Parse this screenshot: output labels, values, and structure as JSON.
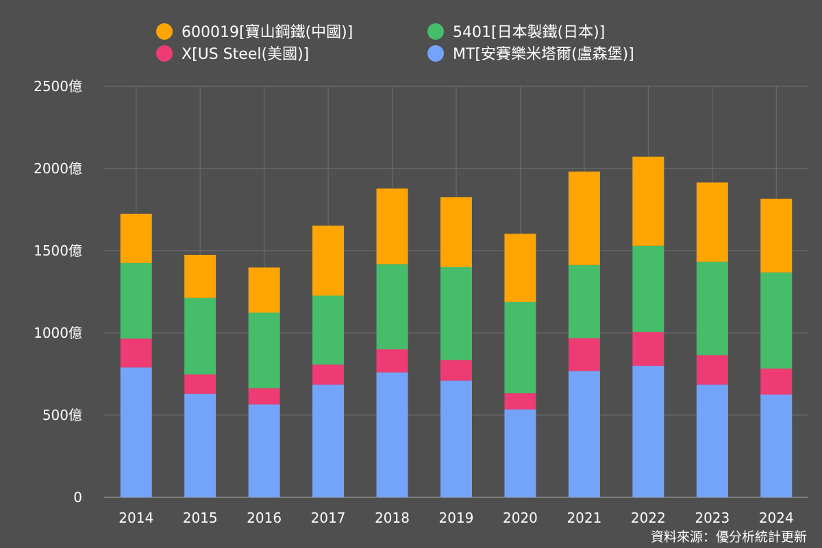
{
  "chart_data": {
    "type": "bar",
    "stacked": true,
    "title": "",
    "xlabel": "",
    "ylabel": "",
    "ylim": [
      0,
      2500
    ],
    "yticks": [
      0,
      500,
      1000,
      1500,
      2000,
      2500
    ],
    "ytick_labels": [
      "0",
      "500億",
      "1000億",
      "1500億",
      "2000億",
      "2500億"
    ],
    "grid": true,
    "legend_position": "top",
    "categories": [
      "2014",
      "2015",
      "2016",
      "2017",
      "2018",
      "2019",
      "2020",
      "2021",
      "2022",
      "2023",
      "2024"
    ],
    "series": [
      {
        "name": "MT[安賽樂米塔爾(盧森堡)]",
        "color": "#74a4fa",
        "values": [
          790,
          630,
          565,
          685,
          760,
          710,
          535,
          768,
          800,
          685,
          625
        ]
      },
      {
        "name": "X[US Steel(美國)]",
        "color": "#ee3b73",
        "values": [
          175,
          118,
          98,
          122,
          140,
          125,
          98,
          200,
          205,
          180,
          158
        ]
      },
      {
        "name": "5401[日本製鐵(日本)]",
        "color": "#46bd6a",
        "values": [
          460,
          465,
          460,
          420,
          518,
          565,
          555,
          445,
          525,
          568,
          585
        ]
      },
      {
        "name": "600019[寶山鋼鐵(中國)]",
        "color": "#ffa502",
        "values": [
          300,
          262,
          275,
          425,
          460,
          425,
          415,
          568,
          542,
          482,
          448
        ]
      }
    ],
    "legend_order": [
      3,
      2,
      1,
      0
    ]
  },
  "source_text": "資料來源：優分析統計更新"
}
